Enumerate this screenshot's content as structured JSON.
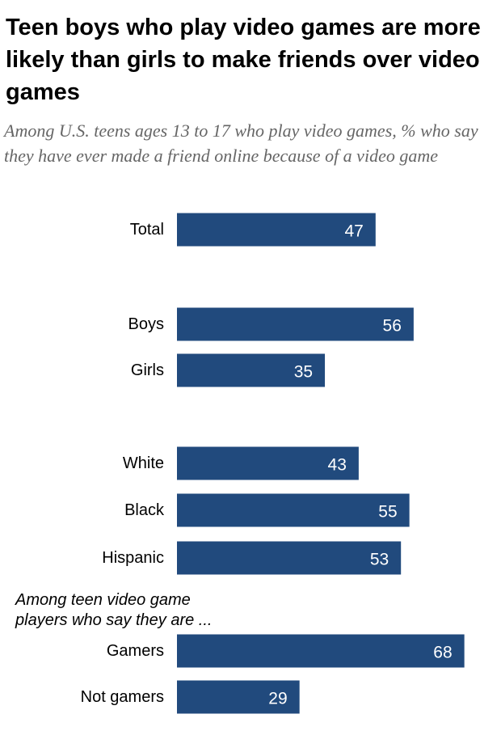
{
  "title": "Teen boys who play video games are more likely than girls to make friends over video games",
  "subtitle": "Among U.S. teens ages 13 to 17 who play video games, % who say they have ever made a friend online because of a video game",
  "colors": {
    "bar": "#214a7d",
    "title": "#000000",
    "subtitle": "#666666"
  },
  "chart_data": {
    "type": "bar",
    "orientation": "horizontal",
    "title": "Teen boys who play video games are more likely than girls to make friends over video games",
    "categories": [
      "Total",
      "Boys",
      "Girls",
      "White",
      "Black",
      "Hispanic",
      "Gamers",
      "Not gamers"
    ],
    "values": [
      47,
      56,
      35,
      43,
      55,
      53,
      68,
      29
    ],
    "groups": [
      [
        "Total"
      ],
      [
        "Boys",
        "Girls"
      ],
      [
        "White",
        "Black",
        "Hispanic"
      ],
      [
        "Gamers",
        "Not gamers"
      ]
    ],
    "group_note": "Among teen video game players who say they are ...",
    "xlim": [
      0,
      100
    ],
    "xlabel": "",
    "ylabel": "",
    "grid": false
  }
}
